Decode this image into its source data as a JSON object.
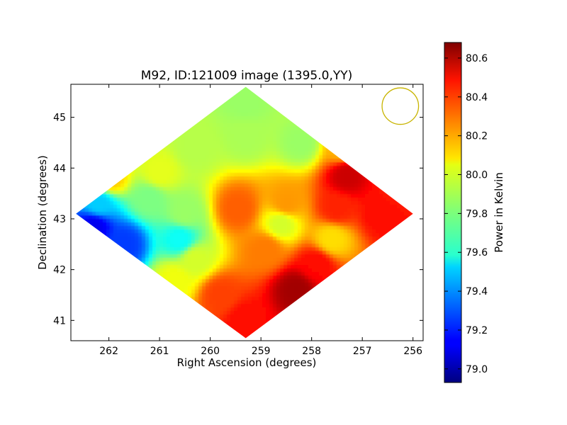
{
  "chart_data": {
    "type": "heatmap",
    "title": "M92, ID:121009 image (1395.0,YY)",
    "xlabel": "Right Ascension (degrees)",
    "ylabel": "Declination (degrees)",
    "xlim": [
      262.75,
      255.8
    ],
    "ylim": [
      40.6,
      45.65
    ],
    "x_ticks": [
      262,
      261,
      260,
      259,
      258,
      257,
      256
    ],
    "y_ticks": [
      41,
      42,
      43,
      44,
      45
    ],
    "x_tick_labels": [
      "262",
      "261",
      "260",
      "259",
      "258",
      "257",
      "256"
    ],
    "y_tick_labels": [
      "41",
      "42",
      "43",
      "44",
      "45"
    ],
    "colormap": "jet",
    "footprint": {
      "shape": "diamond",
      "vertices": [
        [
          259.3,
          45.6
        ],
        [
          256.0,
          43.1
        ],
        [
          259.3,
          40.65
        ],
        [
          262.65,
          43.1
        ]
      ]
    },
    "samples": [
      {
        "ra": 259.3,
        "dec": 45.3,
        "value": 79.85
      },
      {
        "ra": 259.3,
        "dec": 44.6,
        "value": 79.88
      },
      {
        "ra": 260.3,
        "dec": 44.4,
        "value": 79.9
      },
      {
        "ra": 258.2,
        "dec": 44.5,
        "value": 79.85
      },
      {
        "ra": 261.0,
        "dec": 43.9,
        "value": 79.98
      },
      {
        "ra": 262.0,
        "dec": 43.8,
        "value": 80.12
      },
      {
        "ra": 261.2,
        "dec": 43.4,
        "value": 79.8
      },
      {
        "ra": 262.2,
        "dec": 43.3,
        "value": 79.5
      },
      {
        "ra": 262.3,
        "dec": 42.85,
        "value": 79.12
      },
      {
        "ra": 261.7,
        "dec": 42.5,
        "value": 79.25
      },
      {
        "ra": 260.6,
        "dec": 42.6,
        "value": 79.6
      },
      {
        "ra": 260.3,
        "dec": 42.2,
        "value": 79.95
      },
      {
        "ra": 260.7,
        "dec": 41.8,
        "value": 80.0
      },
      {
        "ra": 259.8,
        "dec": 41.5,
        "value": 80.35
      },
      {
        "ra": 259.3,
        "dec": 41.0,
        "value": 80.45
      },
      {
        "ra": 258.9,
        "dec": 42.4,
        "value": 80.25
      },
      {
        "ra": 258.3,
        "dec": 41.6,
        "value": 80.62
      },
      {
        "ra": 257.9,
        "dec": 42.1,
        "value": 80.45
      },
      {
        "ra": 257.6,
        "dec": 42.6,
        "value": 80.08
      },
      {
        "ra": 258.6,
        "dec": 42.9,
        "value": 79.95
      },
      {
        "ra": 258.5,
        "dec": 43.3,
        "value": 80.2
      },
      {
        "ra": 257.5,
        "dec": 43.2,
        "value": 80.4
      },
      {
        "ra": 256.6,
        "dec": 43.1,
        "value": 80.45
      },
      {
        "ra": 257.3,
        "dec": 43.85,
        "value": 80.55
      },
      {
        "ra": 256.3,
        "dec": 43.5,
        "value": 80.42
      },
      {
        "ra": 257.4,
        "dec": 44.4,
        "value": 80.15
      },
      {
        "ra": 259.45,
        "dec": 43.2,
        "value": 80.3
      },
      {
        "ra": 260.5,
        "dec": 43.1,
        "value": 79.85
      }
    ],
    "beam_circle": {
      "ra": 256.25,
      "dec": 45.22,
      "radius_deg": 0.36,
      "color": "#c8b400"
    },
    "colorbar": {
      "label": "Power in Kelvin",
      "range": [
        78.93,
        80.68
      ],
      "ticks": [
        79.0,
        79.2,
        79.4,
        79.6,
        79.8,
        80.0,
        80.2,
        80.4,
        80.6
      ],
      "tick_labels": [
        "79.0",
        "79.2",
        "79.4",
        "79.6",
        "79.8",
        "80.0",
        "80.2",
        "80.4",
        "80.6"
      ]
    }
  }
}
